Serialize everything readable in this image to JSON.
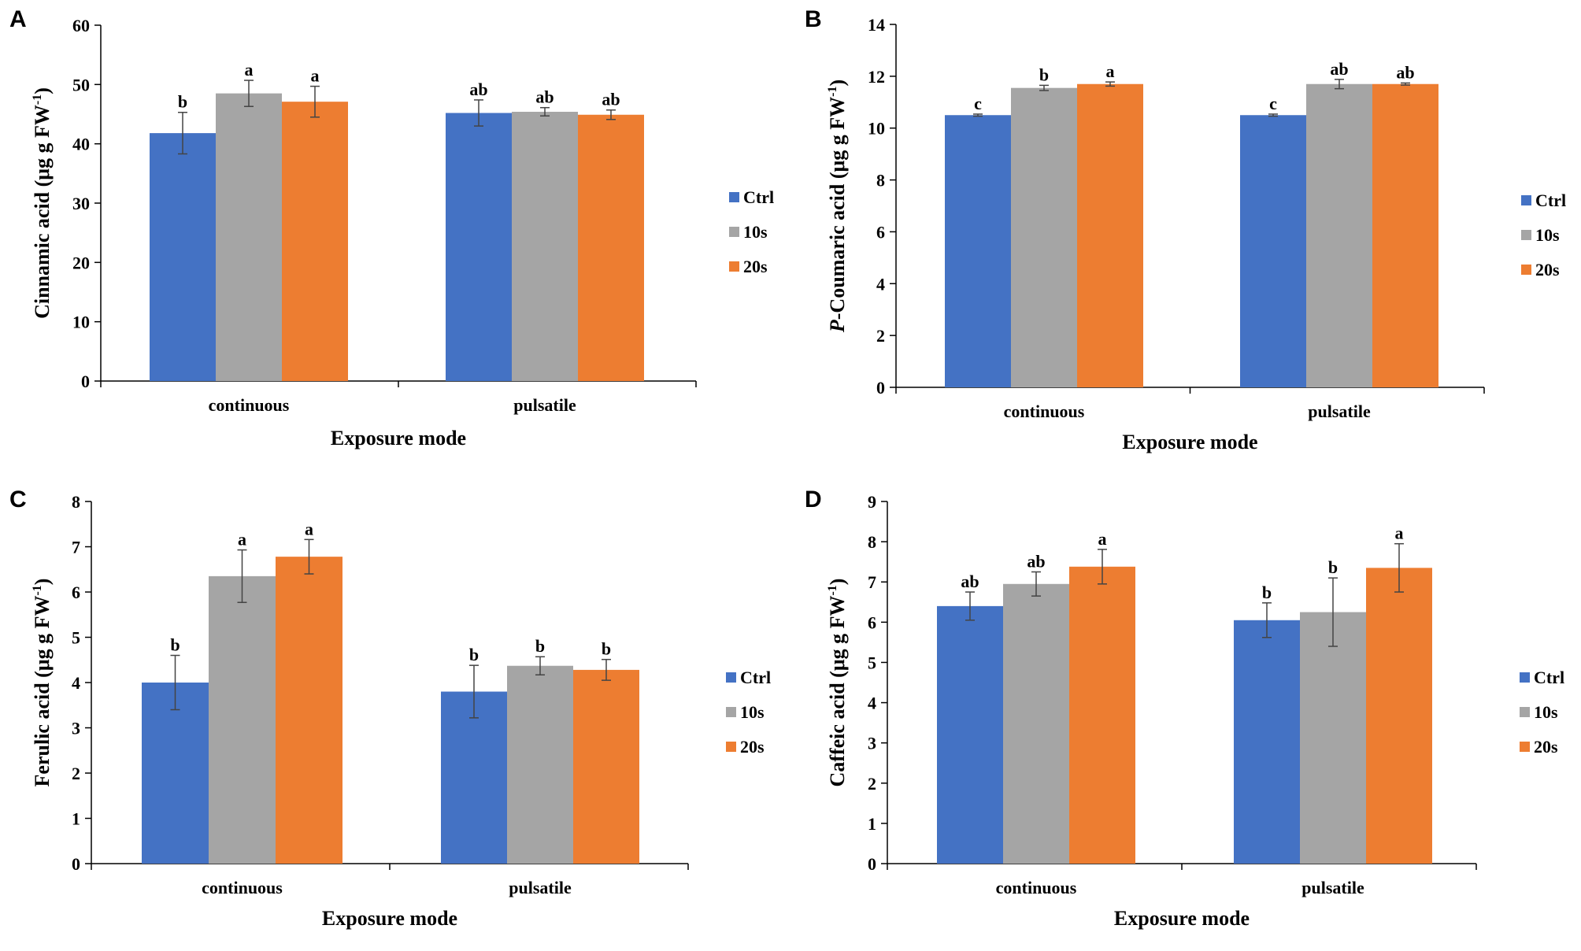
{
  "chart_data": [
    {
      "panel": "A",
      "type": "bar",
      "ylabel": "Cinnamic acid (μg g FW",
      "ylabel_sup": "-1",
      "ylabel_close": ")",
      "xlabel": "Exposure mode",
      "categories": [
        "continuous",
        "pulsatile"
      ],
      "ylim": [
        0,
        60
      ],
      "yticks": [
        0,
        10,
        20,
        30,
        40,
        50,
        60
      ],
      "series": [
        {
          "name": "Ctrl",
          "values": [
            41.8,
            45.2
          ],
          "errors": [
            3.5,
            2.2
          ],
          "letters": [
            "b",
            "ab"
          ]
        },
        {
          "name": "10s",
          "values": [
            48.5,
            45.4
          ],
          "errors": [
            2.2,
            0.7
          ],
          "letters": [
            "a",
            "ab"
          ]
        },
        {
          "name": "20s",
          "values": [
            47.1,
            44.9
          ],
          "errors": [
            2.6,
            0.8
          ],
          "letters": [
            "a",
            "ab"
          ]
        }
      ],
      "legend": "right"
    },
    {
      "panel": "B",
      "type": "bar",
      "ylabel_italic": "P",
      "ylabel": "-Coumaric acid (μg g FW",
      "ylabel_sup": "-1",
      "ylabel_close": ")",
      "xlabel": "Exposure mode",
      "categories": [
        "continuous",
        "pulsatile"
      ],
      "ylim": [
        0,
        14
      ],
      "yticks": [
        0,
        2,
        4,
        6,
        8,
        10,
        12,
        14
      ],
      "series": [
        {
          "name": "Ctrl",
          "values": [
            10.5,
            10.5
          ],
          "errors": [
            0.04,
            0.04
          ],
          "letters": [
            "c",
            "c"
          ]
        },
        {
          "name": "10s",
          "values": [
            11.55,
            11.7
          ],
          "errors": [
            0.1,
            0.18
          ],
          "letters": [
            "b",
            "ab"
          ]
        },
        {
          "name": "20s",
          "values": [
            11.7,
            11.7
          ],
          "errors": [
            0.08,
            0.04
          ],
          "letters": [
            "a",
            "ab"
          ]
        }
      ],
      "legend": "right"
    },
    {
      "panel": "C",
      "type": "bar",
      "ylabel": "Ferulic acid (μg g FW",
      "ylabel_sup": "-1",
      "ylabel_close": ")",
      "xlabel": "Exposure mode",
      "categories": [
        "continuous",
        "pulsatile"
      ],
      "ylim": [
        0,
        8
      ],
      "yticks": [
        0,
        1,
        2,
        3,
        4,
        5,
        6,
        7,
        8
      ],
      "series": [
        {
          "name": "Ctrl",
          "values": [
            4.0,
            3.8
          ],
          "errors": [
            0.6,
            0.58
          ],
          "letters": [
            "b",
            "b"
          ]
        },
        {
          "name": "10s",
          "values": [
            6.35,
            4.37
          ],
          "errors": [
            0.58,
            0.2
          ],
          "letters": [
            "a",
            "b"
          ]
        },
        {
          "name": "20s",
          "values": [
            6.78,
            4.28
          ],
          "errors": [
            0.38,
            0.23
          ],
          "letters": [
            "a",
            "b"
          ]
        }
      ],
      "legend": "right"
    },
    {
      "panel": "D",
      "type": "bar",
      "ylabel": "Caffeic acid (μg g FW",
      "ylabel_sup": "-1",
      "ylabel_close": ")",
      "xlabel": "Exposure mode",
      "categories": [
        "continuous",
        "pulsatile"
      ],
      "ylim": [
        0,
        9
      ],
      "yticks": [
        0,
        1,
        2,
        3,
        4,
        5,
        6,
        7,
        8,
        9
      ],
      "series": [
        {
          "name": "Ctrl",
          "values": [
            6.4,
            6.05
          ],
          "errors": [
            0.35,
            0.43
          ],
          "letters": [
            "ab",
            "b"
          ]
        },
        {
          "name": "10s",
          "values": [
            6.95,
            6.25
          ],
          "errors": [
            0.3,
            0.85
          ],
          "letters": [
            "ab",
            "b"
          ]
        },
        {
          "name": "20s",
          "values": [
            7.38,
            7.35
          ],
          "errors": [
            0.43,
            0.6
          ],
          "letters": [
            "a",
            "a"
          ]
        }
      ],
      "legend": "right"
    }
  ],
  "colors": {
    "Ctrl": "#4472C4",
    "10s": "#A5A5A5",
    "20s": "#ED7D31",
    "axis": "#000000",
    "errorbar": "#444444"
  }
}
